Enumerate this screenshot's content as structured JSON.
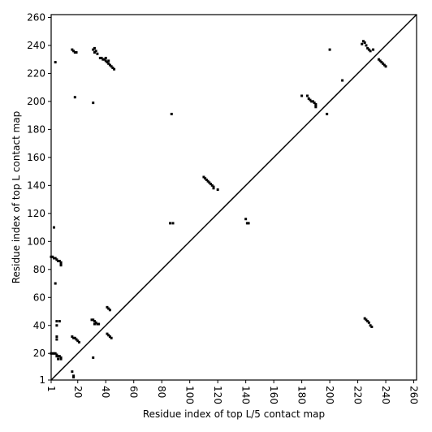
{
  "chart_data": {
    "type": "scatter",
    "x_label": "Residue index of top L/5 contact map",
    "y_label": "Residue index of top L contact map",
    "color": "#000000",
    "xlim": [
      1,
      262
    ],
    "ylim": [
      1,
      262
    ],
    "xticks": [
      1,
      20,
      40,
      60,
      80,
      100,
      120,
      140,
      160,
      180,
      200,
      220,
      240,
      260
    ],
    "yticks": [
      1,
      20,
      40,
      60,
      80,
      100,
      120,
      140,
      160,
      180,
      200,
      220,
      240,
      260
    ],
    "x": [
      16,
      17,
      18,
      19,
      31,
      32,
      33,
      32,
      34,
      36,
      37,
      38,
      39,
      40,
      40,
      41,
      42,
      42,
      43,
      44,
      45,
      46,
      4,
      18,
      31,
      87,
      110,
      111,
      112,
      113,
      114,
      115,
      116,
      117,
      117,
      120,
      86,
      88,
      140,
      141,
      142,
      184,
      180,
      185,
      186,
      187,
      188,
      189,
      190,
      190,
      190,
      198,
      200,
      209,
      223,
      224,
      225,
      226,
      227,
      228,
      229,
      231,
      235,
      236,
      237,
      238,
      239,
      240,
      1,
      2,
      3,
      4,
      5,
      6,
      7,
      8,
      8,
      8,
      3,
      4,
      1,
      2,
      3,
      4,
      5,
      5,
      6,
      7,
      8,
      8,
      6,
      5,
      7,
      5,
      5,
      5,
      16,
      17,
      18,
      19,
      20,
      21,
      30,
      31,
      32,
      33,
      34,
      35,
      32,
      41,
      42,
      43,
      41,
      42,
      43,
      44,
      31,
      16,
      17,
      17,
      225,
      226,
      227,
      228,
      229,
      230
    ],
    "values": [
      237,
      236,
      235,
      235,
      237,
      238,
      236,
      235,
      234,
      231,
      231,
      230,
      230,
      229,
      231,
      228,
      227,
      229,
      226,
      225,
      224,
      223,
      228,
      203,
      199,
      191,
      146,
      145,
      144,
      143,
      142,
      141,
      140,
      139,
      138,
      137,
      113,
      113,
      116,
      113,
      113,
      204,
      204,
      202,
      201,
      200,
      200,
      199,
      198,
      197,
      196,
      191,
      237,
      215,
      241,
      243,
      242,
      240,
      238,
      237,
      236,
      237,
      230,
      229,
      228,
      227,
      226,
      225,
      89,
      89,
      88,
      88,
      87,
      86,
      86,
      85,
      84,
      83,
      110,
      70,
      20,
      20,
      20,
      20,
      19,
      18,
      18,
      18,
      17,
      16,
      16,
      43,
      43,
      40,
      32,
      30,
      32,
      31,
      31,
      30,
      29,
      28,
      44,
      44,
      43,
      42,
      41,
      41,
      41,
      53,
      52,
      51,
      34,
      33,
      32,
      31,
      17,
      7,
      4,
      3,
      45,
      44,
      43,
      42,
      40,
      39
    ]
  }
}
